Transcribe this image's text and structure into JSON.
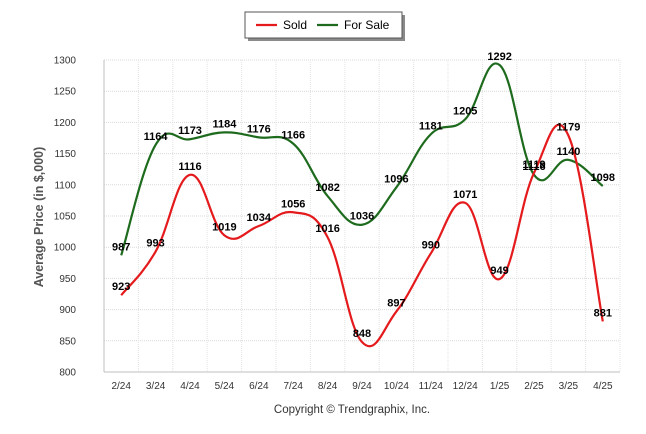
{
  "chart_data": {
    "type": "line",
    "ylabel": "Average Price (in $,000)",
    "xlabel": "",
    "ylim": [
      800,
      1300
    ],
    "yticks": [
      800,
      850,
      900,
      950,
      1000,
      1050,
      1100,
      1150,
      1200,
      1250,
      1300
    ],
    "categories": [
      "2/24",
      "3/24",
      "4/24",
      "5/24",
      "6/24",
      "7/24",
      "8/24",
      "9/24",
      "10/24",
      "11/24",
      "12/24",
      "1/25",
      "2/25",
      "3/25",
      "4/25"
    ],
    "series": [
      {
        "name": "Sold",
        "color": "#e41a1c",
        "values": [
          923,
          993,
          1116,
          1019,
          1034,
          1056,
          1016,
          848,
          897,
          990,
          1071,
          949,
          1119,
          1179,
          881
        ]
      },
      {
        "name": "For Sale",
        "color": "#1e6b1e",
        "values": [
          987,
          1164,
          1173,
          1184,
          1176,
          1166,
          1082,
          1036,
          1096,
          1181,
          1205,
          1292,
          1116,
          1140,
          1098
        ]
      }
    ],
    "legend": "top-center",
    "grid": true
  },
  "credit": "Copyright © Trendgraphix, Inc."
}
